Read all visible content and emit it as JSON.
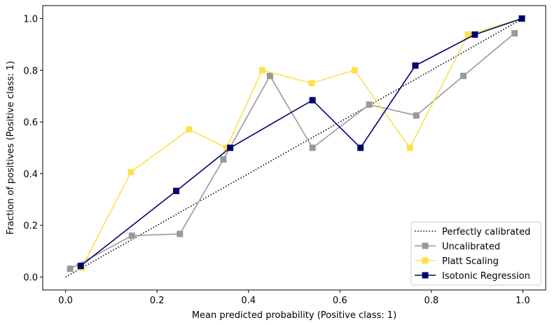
{
  "chart_data": {
    "type": "line",
    "xlabel": "Mean predicted probability (Positive class: 1)",
    "ylabel": "Fraction of positives (Positive class: 1)",
    "xlim": [
      -0.05,
      1.05
    ],
    "ylim": [
      -0.05,
      1.05
    ],
    "xticks": [
      "0.0",
      "0.2",
      "0.4",
      "0.6",
      "0.8",
      "1.0"
    ],
    "yticks": [
      "0.0",
      "0.2",
      "0.4",
      "0.6",
      "0.8",
      "1.0"
    ],
    "grid": false,
    "legend_position": "bottom-right",
    "reference": {
      "name": "Perfectly calibrated",
      "x": [
        0,
        1
      ],
      "y": [
        0,
        1
      ],
      "color": "#000000",
      "style": "dotted"
    },
    "series": [
      {
        "name": "Uncalibrated",
        "color": "#999999",
        "x": [
          0.01,
          0.145,
          0.25,
          0.345,
          0.447,
          0.54,
          0.664,
          0.767,
          0.87,
          0.982
        ],
        "y": [
          0.032,
          0.16,
          0.167,
          0.455,
          0.778,
          0.5,
          0.667,
          0.625,
          0.778,
          0.943
        ]
      },
      {
        "name": "Platt Scaling",
        "color": "#fbe14e",
        "x": [
          0.035,
          0.143,
          0.27,
          0.352,
          0.43,
          0.538,
          0.632,
          0.753,
          0.88,
          0.998
        ],
        "y": [
          0.035,
          0.406,
          0.571,
          0.5,
          0.8,
          0.75,
          0.8,
          0.5,
          0.938,
          1.0
        ]
      },
      {
        "name": "Isotonic Regression",
        "color": "#000070",
        "x": [
          0.033,
          0.242,
          0.36,
          0.54,
          0.645,
          0.765,
          0.895,
          0.998
        ],
        "y": [
          0.043,
          0.333,
          0.5,
          0.684,
          0.5,
          0.818,
          0.938,
          1.0
        ]
      }
    ]
  }
}
